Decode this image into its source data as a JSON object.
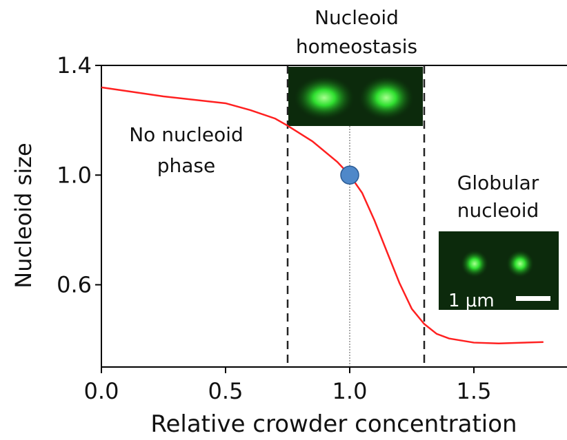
{
  "chart_data": {
    "type": "line",
    "xlabel": "Relative crowder concentration",
    "ylabel": "Nucleoid size",
    "xlim": [
      0,
      1.875
    ],
    "ylim": [
      0.3,
      1.4
    ],
    "xticks": [
      {
        "value": 0,
        "label": "0.0"
      },
      0.5,
      {
        "value": 1,
        "label": "1.0"
      },
      1.5
    ],
    "yticks": [
      0.6,
      {
        "value": 1,
        "label": "1.0"
      },
      1.4
    ],
    "series": [
      {
        "color": "#ff2020",
        "x": [
          0,
          0.25,
          0.5,
          0.6,
          0.7,
          0.75,
          0.85,
          0.95,
          1.0,
          1.05,
          1.1,
          1.15,
          1.2,
          1.25,
          1.3,
          1.35,
          1.4,
          1.5,
          1.6,
          1.78
        ],
        "values": [
          1.32,
          1.287,
          1.262,
          1.237,
          1.206,
          1.18,
          1.123,
          1.048,
          1.0,
          0.935,
          0.834,
          0.72,
          0.607,
          0.512,
          0.457,
          0.421,
          0.404,
          0.389,
          0.386,
          0.391
        ]
      }
    ],
    "boundaries": [
      0.75,
      1.3
    ],
    "reference_x": 1.0,
    "point": {
      "x": 1.0,
      "y": 1.0,
      "color": "#4f88c9"
    },
    "annotations": {
      "homeostasis": [
        "Nucleoid",
        "homeostasis"
      ],
      "no_phase": [
        "No nucleoid",
        "phase"
      ],
      "globular": [
        "Globular",
        "nucleoid"
      ]
    },
    "scale_bar": "1 μm"
  }
}
